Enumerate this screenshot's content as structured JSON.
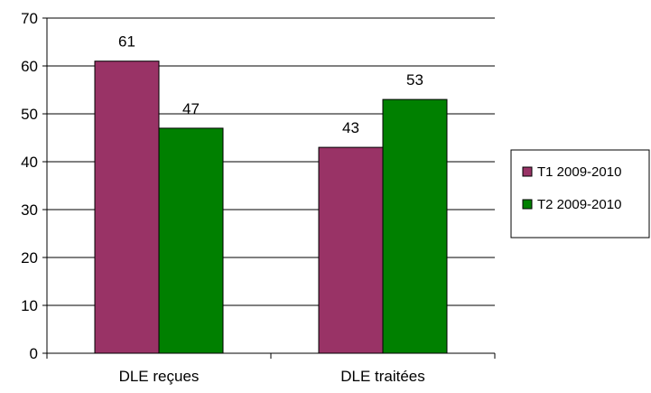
{
  "chart_data": {
    "type": "bar",
    "categories": [
      "DLE reçues",
      "DLE traitées"
    ],
    "series": [
      {
        "name": "T1 2009-2010",
        "values": [
          61,
          43
        ],
        "color": "#993366"
      },
      {
        "name": "T2 2009-2010",
        "values": [
          47,
          53
        ],
        "color": "#008000"
      }
    ],
    "ylim": [
      0,
      70
    ],
    "yticks": [
      0,
      10,
      20,
      30,
      40,
      50,
      60,
      70
    ],
    "grid": true,
    "legend_position": "right",
    "data_labels": true
  }
}
